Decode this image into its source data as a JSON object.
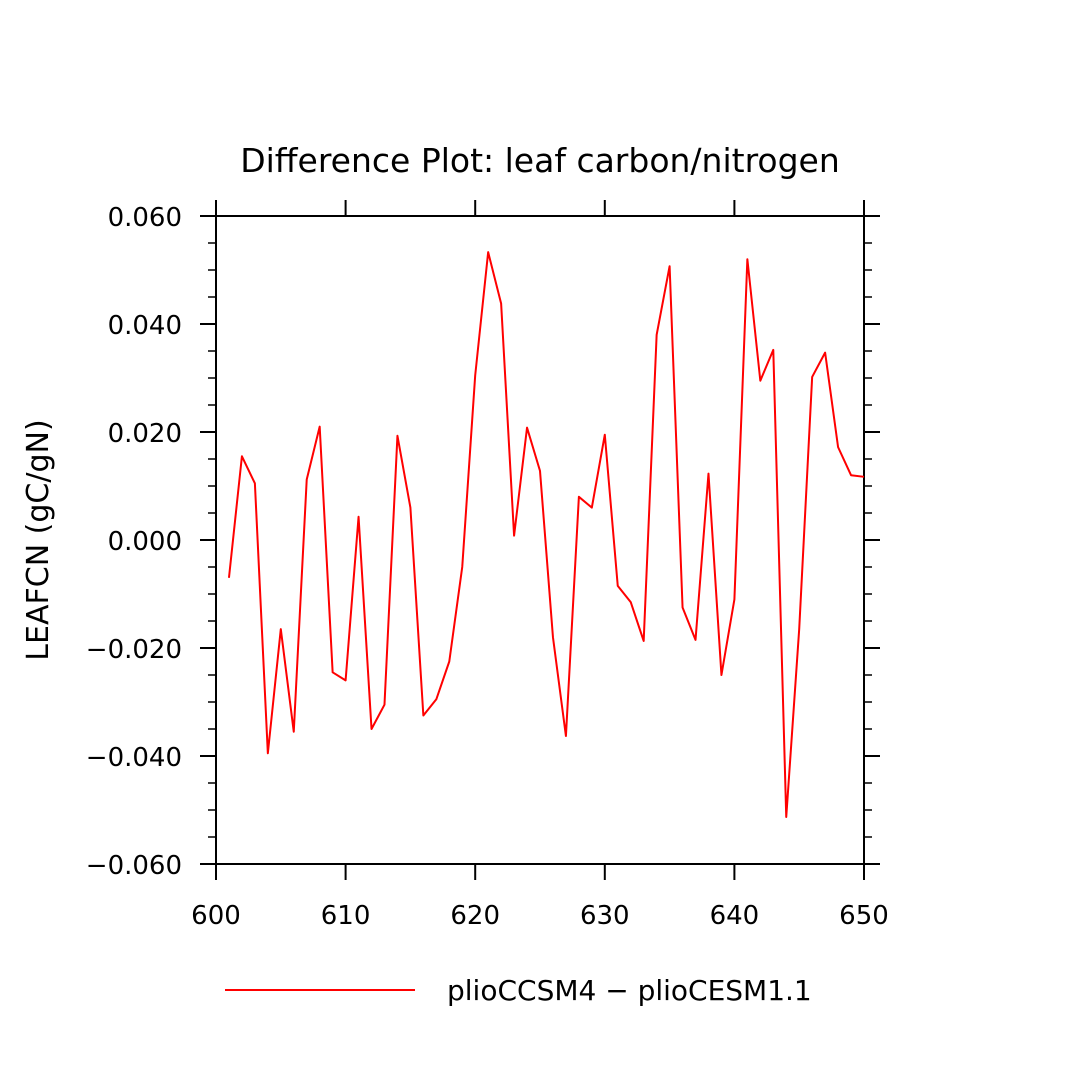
{
  "chart_data": {
    "type": "line",
    "title": "Difference Plot: leaf carbon/nitrogen",
    "xlabel": "",
    "ylabel": "LEAFCN  (gC/gN)",
    "xlim": [
      600,
      650
    ],
    "ylim": [
      -0.06,
      0.06
    ],
    "x_ticks": [
      600,
      610,
      620,
      630,
      640,
      650
    ],
    "x_tick_labels": [
      "600",
      "610",
      "620",
      "630",
      "640",
      "650"
    ],
    "y_ticks": [
      -0.06,
      -0.04,
      -0.02,
      0.0,
      0.02,
      0.04,
      0.06
    ],
    "y_tick_labels": [
      "−0.060",
      "−0.040",
      "−0.020",
      "0.000",
      "0.020",
      "0.040",
      "0.060"
    ],
    "grid": false,
    "legend_position": "bottom",
    "series": [
      {
        "name": "plioCCSM4 − plioCESM1.1",
        "color": "#ff0000",
        "x": [
          601,
          602,
          603,
          604,
          605,
          606,
          607,
          608,
          609,
          610,
          611,
          612,
          613,
          614,
          615,
          616,
          617,
          618,
          619,
          620,
          621,
          622,
          623,
          624,
          625,
          626,
          627,
          628,
          629,
          630,
          631,
          632,
          633,
          634,
          635,
          636,
          637,
          638,
          639,
          640,
          641,
          642,
          643,
          644,
          645,
          646,
          647,
          648,
          649,
          650
        ],
        "values": [
          -0.007,
          0.0155,
          0.0105,
          -0.0395,
          -0.0165,
          -0.0355,
          0.0112,
          0.021,
          -0.0245,
          -0.026,
          0.0043,
          -0.035,
          -0.0305,
          0.0193,
          0.006,
          -0.0325,
          -0.0295,
          -0.0225,
          -0.005,
          0.0305,
          0.0533,
          0.0438,
          0.0008,
          0.0208,
          0.0128,
          -0.018,
          -0.0363,
          0.008,
          0.006,
          0.0195,
          -0.0085,
          -0.0115,
          -0.0187,
          0.038,
          0.0507,
          -0.0125,
          -0.0185,
          0.0123,
          -0.025,
          -0.011,
          0.052,
          0.0295,
          0.0352,
          -0.0513,
          -0.0165,
          0.0302,
          0.0347,
          0.0172,
          0.012,
          0.0117
        ]
      }
    ]
  }
}
